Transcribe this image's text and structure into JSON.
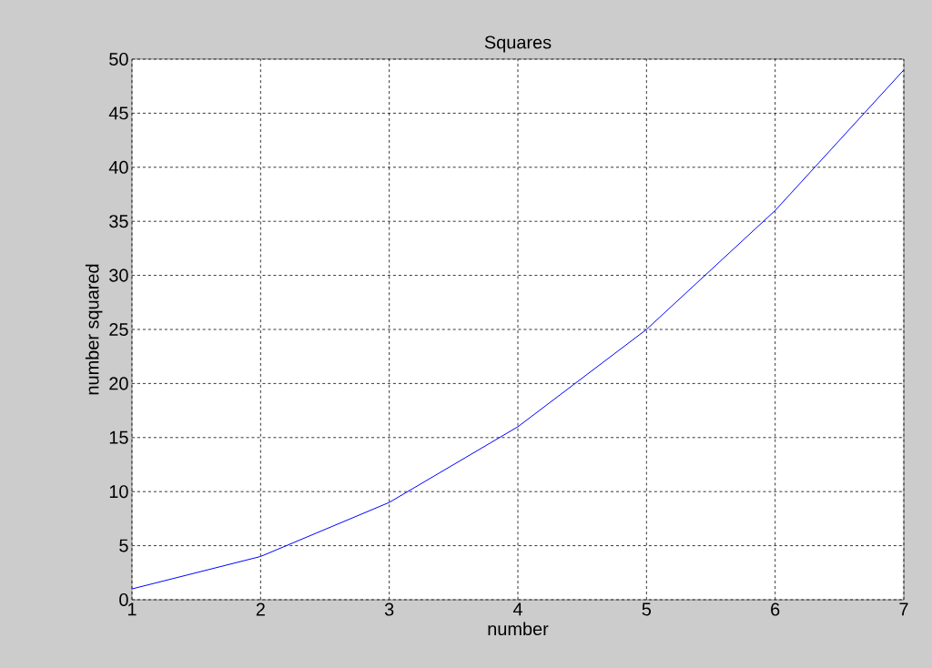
{
  "chart_data": {
    "type": "line",
    "title": "Squares",
    "xlabel": "number",
    "ylabel": "number squared",
    "x": [
      1,
      2,
      3,
      4,
      5,
      6,
      7
    ],
    "series": [
      {
        "color": "#0000ff",
        "values": [
          1,
          4,
          9,
          16,
          25,
          36,
          49
        ]
      }
    ],
    "xlim": [
      1,
      7
    ],
    "ylim": [
      0,
      50
    ],
    "xticks": [
      1,
      2,
      3,
      4,
      5,
      6,
      7
    ],
    "yticks": [
      0,
      5,
      10,
      15,
      20,
      25,
      30,
      35,
      40,
      45,
      50
    ],
    "grid": true,
    "marker": "none",
    "line_style": "solid"
  }
}
